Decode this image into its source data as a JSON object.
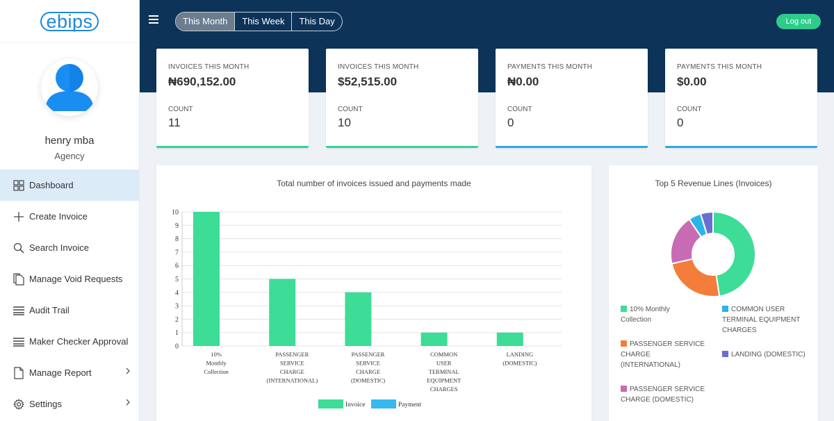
{
  "brand": {
    "logo_text": "ebips"
  },
  "user": {
    "name": "henry mba",
    "role": "Agency"
  },
  "nav": [
    {
      "label": "Dashboard",
      "icon": "dashboard-icon",
      "active": true
    },
    {
      "label": "Create Invoice",
      "icon": "plus-icon"
    },
    {
      "label": "Search Invoice",
      "icon": "search-icon"
    },
    {
      "label": "Manage Void Requests",
      "icon": "documents-icon"
    },
    {
      "label": "Audit Trail",
      "icon": "list-icon"
    },
    {
      "label": "Maker Checker Approval",
      "icon": "list-icon"
    },
    {
      "label": "Manage Report",
      "icon": "document-icon",
      "has_chevron": true
    },
    {
      "label": "Settings",
      "icon": "gear-icon",
      "has_chevron": true
    }
  ],
  "topbar": {
    "periods": [
      "This Month",
      "This Week",
      "This Day"
    ],
    "active_period": "This Month",
    "logout_label": "Log out"
  },
  "cards": [
    {
      "label": "INVOICES THIS MONTH",
      "amount": "₦690,152.00",
      "count_label": "COUNT",
      "count": "11",
      "accent": "#3ad196"
    },
    {
      "label": "INVOICES THIS MONTH",
      "amount": "$52,515.00",
      "count_label": "COUNT",
      "count": "10",
      "accent": "#3ad196"
    },
    {
      "label": "PAYMENTS THIS MONTH",
      "amount": "₦0.00",
      "count_label": "COUNT",
      "count": "0",
      "accent": "#2fa6e6"
    },
    {
      "label": "PAYMENTS THIS MONTH",
      "amount": "$0.00",
      "count_label": "COUNT",
      "count": "0",
      "accent": "#2fa6e6"
    }
  ],
  "bar_chart_title": "Total number of invoices issued and payments made",
  "pie_chart_title": "Top 5 Revenue Lines (Invoices)",
  "chart_data": [
    {
      "type": "bar",
      "title": "Total number of invoices issued and payments made",
      "categories": [
        [
          "10%",
          "Monthly",
          "Collection"
        ],
        [
          "PASSENGER",
          "SERVICE",
          "CHARGE",
          "(INTERNATIONAL)"
        ],
        [
          "PASSENGER",
          "SERVICE",
          "CHARGE",
          "(DOMESTIC)"
        ],
        [
          "COMMON",
          "USER",
          "TERMINAL",
          "EQUIPMENT",
          "CHARGES"
        ],
        [
          "LANDING",
          "(DOMESTIC)"
        ]
      ],
      "series": [
        {
          "name": "Invoice",
          "color": "#3ddc97",
          "values": [
            10,
            5,
            4,
            1,
            1
          ]
        },
        {
          "name": "Payment",
          "color": "#36b9ee",
          "values": [
            0,
            0,
            0,
            0,
            0
          ]
        }
      ],
      "ylim": [
        0,
        10
      ],
      "yticks": [
        0,
        1,
        2,
        3,
        4,
        5,
        6,
        7,
        8,
        9,
        10
      ],
      "grid": true,
      "legend_position": "bottom"
    },
    {
      "type": "pie",
      "title": "Top 5 Revenue Lines (Invoices)",
      "donut": true,
      "slices": [
        {
          "label": "10% Monthly Collection",
          "value": 10,
          "color": "#3ddc97"
        },
        {
          "label": "PASSENGER SERVICE CHARGE (INTERNATIONAL)",
          "value": 5,
          "color": "#f47d3b"
        },
        {
          "label": "PASSENGER SERVICE CHARGE (DOMESTIC)",
          "value": 4,
          "color": "#c86bb5"
        },
        {
          "label": "COMMON USER TERMINAL EQUIPMENT CHARGES",
          "value": 1,
          "color": "#2bb3ea"
        },
        {
          "label": "LANDING (DOMESTIC)",
          "value": 1,
          "color": "#6a6fcf"
        }
      ],
      "legend": [
        {
          "lines": [
            "10% Monthly",
            "Collection"
          ],
          "color": "#3ddc97"
        },
        {
          "lines": [
            "COMMON USER",
            "TERMINAL EQUIPMENT",
            "CHARGES"
          ],
          "color": "#2bb3ea"
        },
        {
          "lines": [
            "PASSENGER SERVICE",
            "CHARGE",
            "(INTERNATIONAL)"
          ],
          "color": "#f47d3b"
        },
        {
          "lines": [
            "LANDING (DOMESTIC)"
          ],
          "color": "#6a6fcf"
        },
        {
          "lines": [
            "PASSENGER SERVICE",
            "CHARGE (DOMESTIC)"
          ],
          "color": "#c86bb5"
        }
      ]
    }
  ]
}
